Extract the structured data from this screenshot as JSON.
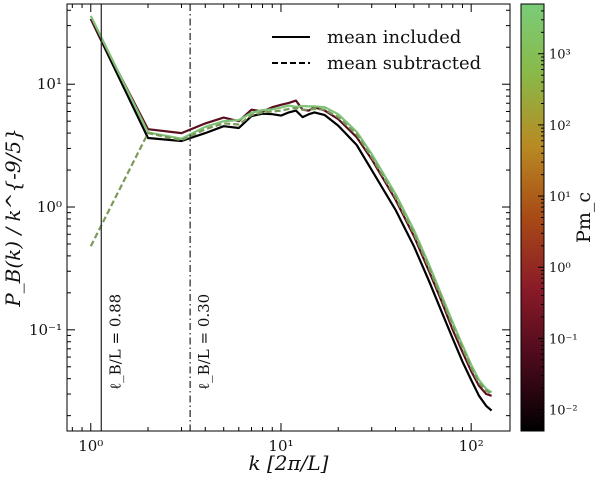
{
  "chart_data": {
    "type": "line",
    "xlabel": "k [2π/L]",
    "ylabel": "P_B(k) / k^{-9/5}",
    "x_scale": "log",
    "y_scale": "log",
    "xlim": [
      0.75,
      160
    ],
    "ylim": [
      0.015,
      45
    ],
    "x_ticks": [
      {
        "value": 1,
        "label": "10⁰"
      },
      {
        "value": 10,
        "label": "10¹"
      },
      {
        "value": 100,
        "label": "10²"
      }
    ],
    "y_ticks": [
      {
        "value": 0.1,
        "label": "10⁻¹"
      },
      {
        "value": 1,
        "label": "10⁰"
      },
      {
        "value": 10,
        "label": "10¹"
      }
    ],
    "legend": {
      "placement": "top-right",
      "entries": [
        {
          "label": "mean included",
          "style": "solid"
        },
        {
          "label": "mean subtracted",
          "style": "dashed"
        }
      ]
    },
    "vlines": [
      {
        "x": 1.136,
        "style": "solid",
        "label": "ℓ_B/L = 0.88"
      },
      {
        "x": 3.33,
        "style": "dashdot",
        "label": "ℓ_B/L = 0.30"
      }
    ],
    "colorbar": {
      "label": "Pm_c",
      "scale": "log",
      "range": [
        0.005,
        5000
      ],
      "ticks": [
        {
          "value": 0.01,
          "label": "10⁻²"
        },
        {
          "value": 0.1,
          "label": "10⁻¹"
        },
        {
          "value": 1,
          "label": "10⁰"
        },
        {
          "value": 10,
          "label": "10¹"
        },
        {
          "value": 100,
          "label": "10²"
        },
        {
          "value": 1000,
          "label": "10³"
        }
      ],
      "colors": [
        "#000000",
        "#4a0a1c",
        "#8a1a28",
        "#a84a16",
        "#b88a22",
        "#8ab848",
        "#7acc78"
      ]
    },
    "series": [
      {
        "color": "#000000",
        "style": "solid",
        "x": [
          1,
          2,
          3,
          4,
          5,
          6,
          7,
          8,
          9,
          10,
          11,
          12,
          13,
          14,
          15,
          17,
          20,
          25,
          30,
          40,
          50,
          60,
          70,
          80,
          90,
          100,
          110,
          120,
          128
        ],
        "y": [
          34,
          3.65,
          3.45,
          4.0,
          4.55,
          4.4,
          5.5,
          5.75,
          5.7,
          5.55,
          5.9,
          6.1,
          5.4,
          5.7,
          5.9,
          5.6,
          4.6,
          3.2,
          2.0,
          0.95,
          0.48,
          0.25,
          0.14,
          0.085,
          0.055,
          0.039,
          0.029,
          0.024,
          0.022
        ]
      },
      {
        "color": "#5a0e1e",
        "style": "solid",
        "x": [
          1,
          2,
          3,
          4,
          5,
          6,
          7,
          8,
          9,
          10,
          11,
          12,
          13,
          14,
          15,
          17,
          20,
          25,
          30,
          40,
          50,
          60,
          70,
          80,
          90,
          100,
          110,
          120,
          128
        ],
        "y": [
          34,
          4.3,
          4.0,
          4.8,
          5.35,
          5.0,
          6.2,
          6.0,
          6.5,
          6.8,
          7.05,
          7.35,
          6.2,
          6.1,
          6.5,
          6.1,
          5.2,
          3.7,
          2.45,
          1.15,
          0.58,
          0.3,
          0.17,
          0.1,
          0.066,
          0.046,
          0.035,
          0.03,
          0.029
        ]
      },
      {
        "color": "#7fc278",
        "style": "solid",
        "x": [
          1,
          2,
          3,
          4,
          5,
          6,
          7,
          8,
          9,
          10,
          11,
          12,
          13,
          14,
          15,
          17,
          20,
          25,
          30,
          40,
          50,
          60,
          70,
          80,
          90,
          100,
          110,
          120,
          128
        ],
        "y": [
          36,
          4.05,
          3.6,
          4.5,
          5.0,
          5.1,
          5.85,
          6.15,
          6.25,
          6.45,
          6.7,
          6.55,
          6.65,
          6.6,
          6.6,
          6.5,
          5.7,
          4.1,
          2.7,
          1.28,
          0.65,
          0.34,
          0.19,
          0.115,
          0.075,
          0.052,
          0.039,
          0.033,
          0.031
        ]
      },
      {
        "color": "#7a9a5a",
        "style": "dashed",
        "x": [
          1,
          2,
          3,
          4,
          5,
          6,
          7,
          8,
          9,
          10,
          11,
          12,
          13,
          14,
          15,
          17,
          20,
          25,
          30,
          40,
          50,
          60,
          70,
          80,
          90,
          100,
          110,
          120,
          128
        ],
        "y": [
          0.48,
          4.0,
          3.5,
          4.3,
          4.8,
          4.7,
          5.6,
          5.9,
          6.0,
          6.1,
          6.3,
          6.4,
          6.2,
          6.2,
          6.3,
          6.2,
          5.4,
          3.9,
          2.55,
          1.2,
          0.61,
          0.32,
          0.18,
          0.108,
          0.071,
          0.049,
          0.037,
          0.032,
          0.03
        ]
      }
    ]
  }
}
